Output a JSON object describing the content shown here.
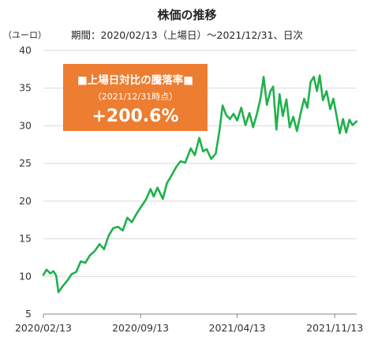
{
  "chart_data": {
    "type": "line",
    "title": "株価の推移",
    "subtitle": "期間：2020/02/13（上場日）～2021/12/31、日次",
    "ylabel": "（ユーロ）",
    "ylim": [
      5,
      40
    ],
    "yticks": [
      5,
      10,
      15,
      20,
      25,
      30,
      35,
      40
    ],
    "xticks": [
      "2020/02/13",
      "2020/09/13",
      "2021/04/13",
      "2021/11/13"
    ],
    "x_range": [
      "2020/02/13",
      "2021/12/31"
    ],
    "grid": "horizontal",
    "series": [
      {
        "color": "#1fb14b",
        "points": [
          [
            "2020/02/13",
            10.2
          ],
          [
            "2020/02/20",
            10.9
          ],
          [
            "2020/02/28",
            10.4
          ],
          [
            "2020/03/06",
            10.7
          ],
          [
            "2020/03/12",
            10.1
          ],
          [
            "2020/03/17",
            7.9
          ],
          [
            "2020/03/25",
            8.6
          ],
          [
            "2020/04/05",
            9.4
          ],
          [
            "2020/04/15",
            10.3
          ],
          [
            "2020/04/25",
            10.6
          ],
          [
            "2020/05/05",
            12.0
          ],
          [
            "2020/05/15",
            11.8
          ],
          [
            "2020/05/25",
            12.8
          ],
          [
            "2020/06/05",
            13.4
          ],
          [
            "2020/06/15",
            14.3
          ],
          [
            "2020/06/25",
            13.6
          ],
          [
            "2020/07/05",
            15.4
          ],
          [
            "2020/07/15",
            16.4
          ],
          [
            "2020/07/25",
            16.6
          ],
          [
            "2020/08/05",
            16.1
          ],
          [
            "2020/08/15",
            17.8
          ],
          [
            "2020/08/25",
            17.2
          ],
          [
            "2020/09/05",
            18.4
          ],
          [
            "2020/09/15",
            19.3
          ],
          [
            "2020/09/25",
            20.2
          ],
          [
            "2020/10/05",
            21.6
          ],
          [
            "2020/10/12",
            20.6
          ],
          [
            "2020/10/20",
            21.8
          ],
          [
            "2020/11/01",
            20.3
          ],
          [
            "2020/11/10",
            22.4
          ],
          [
            "2020/11/20",
            23.4
          ],
          [
            "2020/12/01",
            24.6
          ],
          [
            "2020/12/10",
            25.3
          ],
          [
            "2020/12/20",
            25.1
          ],
          [
            "2021/01/01",
            27.0
          ],
          [
            "2021/01/10",
            26.1
          ],
          [
            "2021/01/20",
            28.4
          ],
          [
            "2021/01/28",
            26.6
          ],
          [
            "2021/02/05",
            26.9
          ],
          [
            "2021/02/15",
            25.6
          ],
          [
            "2021/02/25",
            26.3
          ],
          [
            "2021/03/05",
            29.3
          ],
          [
            "2021/03/12",
            32.7
          ],
          [
            "2021/03/20",
            31.4
          ],
          [
            "2021/03/28",
            30.9
          ],
          [
            "2021/04/05",
            31.6
          ],
          [
            "2021/04/13",
            30.7
          ],
          [
            "2021/04/22",
            32.4
          ],
          [
            "2021/05/01",
            30.1
          ],
          [
            "2021/05/10",
            31.7
          ],
          [
            "2021/05/18",
            29.8
          ],
          [
            "2021/05/26",
            31.5
          ],
          [
            "2021/06/03",
            33.6
          ],
          [
            "2021/06/10",
            36.5
          ],
          [
            "2021/06/17",
            32.8
          ],
          [
            "2021/06/25",
            34.6
          ],
          [
            "2021/07/01",
            35.2
          ],
          [
            "2021/07/08",
            29.5
          ],
          [
            "2021/07/15",
            34.2
          ],
          [
            "2021/07/22",
            31.3
          ],
          [
            "2021/07/30",
            33.5
          ],
          [
            "2021/08/06",
            29.8
          ],
          [
            "2021/08/14",
            31.2
          ],
          [
            "2021/08/22",
            29.3
          ],
          [
            "2021/08/30",
            31.6
          ],
          [
            "2021/09/07",
            33.6
          ],
          [
            "2021/09/14",
            32.4
          ],
          [
            "2021/09/21",
            35.8
          ],
          [
            "2021/09/28",
            36.5
          ],
          [
            "2021/10/05",
            34.6
          ],
          [
            "2021/10/11",
            36.7
          ],
          [
            "2021/10/18",
            33.4
          ],
          [
            "2021/10/26",
            34.6
          ],
          [
            "2021/11/03",
            32.2
          ],
          [
            "2021/11/10",
            33.6
          ],
          [
            "2021/11/17",
            31.3
          ],
          [
            "2021/11/24",
            29.0
          ],
          [
            "2021/12/01",
            30.9
          ],
          [
            "2021/12/08",
            29.1
          ],
          [
            "2021/12/15",
            30.8
          ],
          [
            "2021/12/22",
            30.1
          ],
          [
            "2021/12/31",
            30.6
          ]
        ]
      }
    ]
  },
  "callout": {
    "title": "■上場日対比の騰落率■",
    "subtitle": "（2021/12/31時点）",
    "value": "+200.6%",
    "color": "#ed7d31"
  }
}
